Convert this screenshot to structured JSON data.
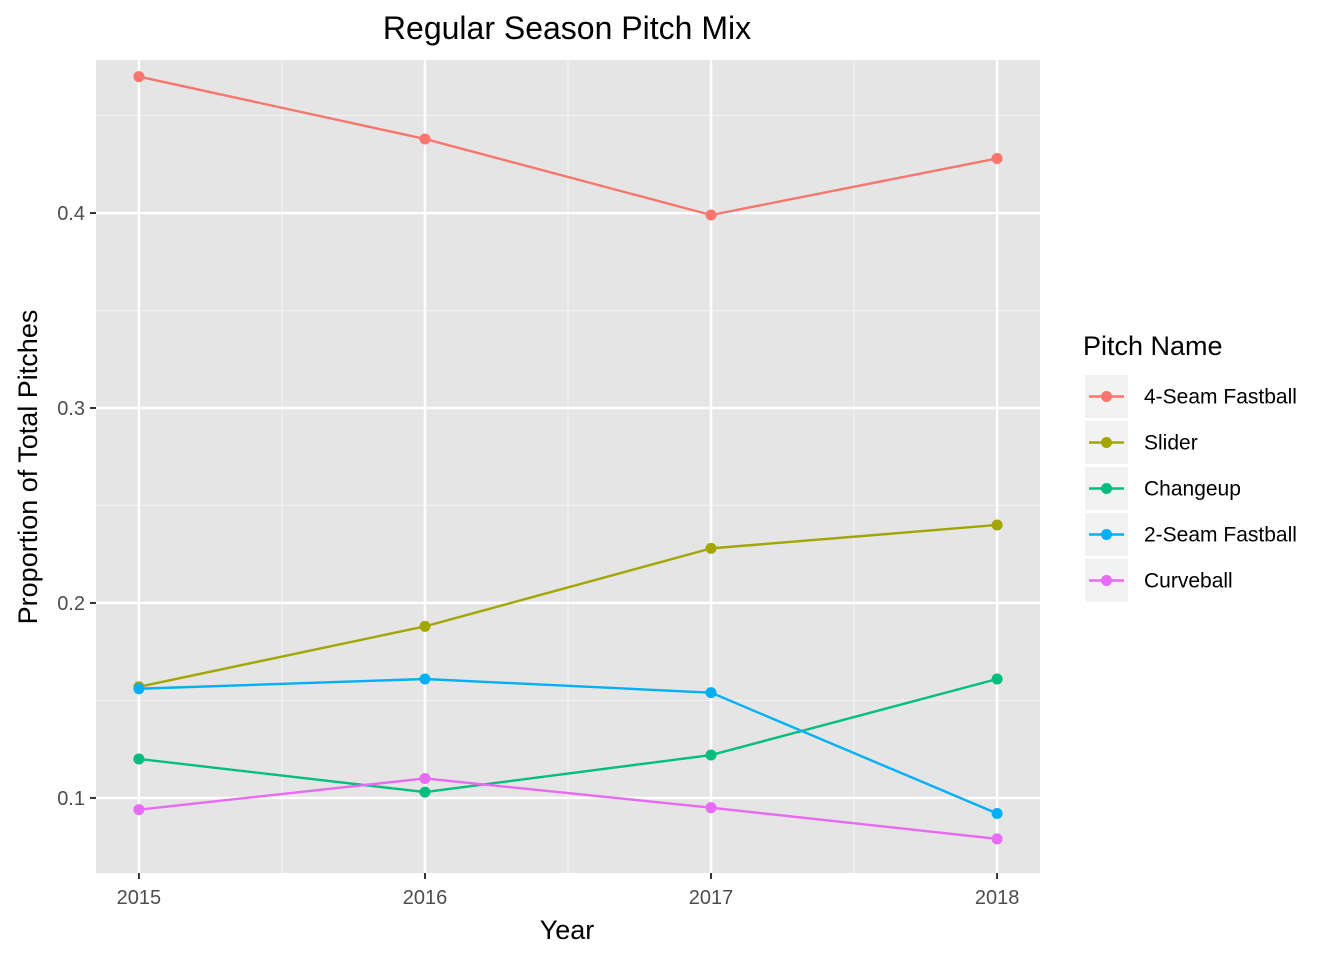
{
  "chart_data": {
    "type": "line",
    "title": "Regular Season Pitch Mix",
    "xlabel": "Year",
    "ylabel": "Proportion of Total Pitches",
    "x": [
      2015,
      2016,
      2017,
      2018
    ],
    "x_tick_labels": [
      "2015",
      "2016",
      "2017",
      "2018"
    ],
    "xlim": [
      2014.85,
      2018.15
    ],
    "ylim": [
      0.0615,
      0.4785
    ],
    "y_ticks": [
      0.1,
      0.2,
      0.3,
      0.4
    ],
    "y_tick_labels": [
      "0.1",
      "0.2",
      "0.3",
      "0.4"
    ],
    "grid": true,
    "legend_title": "Pitch Name",
    "legend_position": "right",
    "series": [
      {
        "name": "4-Seam Fastball",
        "color": "#F8766D",
        "values": [
          0.47,
          0.438,
          0.399,
          0.428
        ]
      },
      {
        "name": "Slider",
        "color": "#A3A500",
        "values": [
          0.157,
          0.188,
          0.228,
          0.24
        ]
      },
      {
        "name": "Changeup",
        "color": "#00BF7D",
        "values": [
          0.12,
          0.103,
          0.122,
          0.161
        ]
      },
      {
        "name": "2-Seam Fastball",
        "color": "#00B0F6",
        "values": [
          0.156,
          0.161,
          0.154,
          0.092
        ]
      },
      {
        "name": "Curveball",
        "color": "#E76BF3",
        "values": [
          0.094,
          0.11,
          0.095,
          0.079
        ]
      }
    ]
  }
}
